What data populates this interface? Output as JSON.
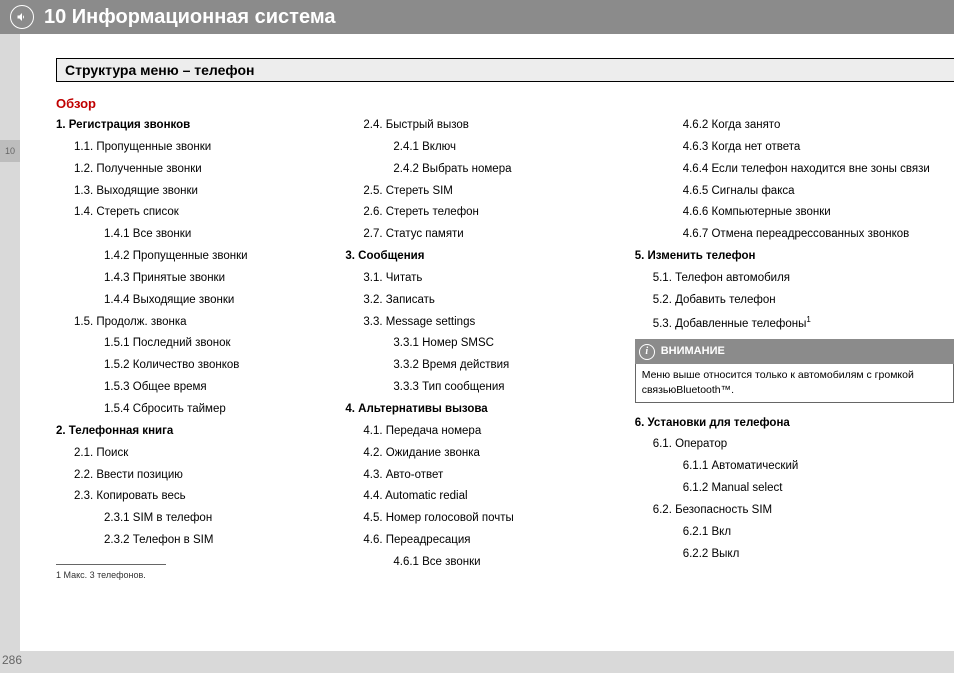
{
  "header": {
    "title": "10 Информационная система"
  },
  "section_title": "Структура меню – телефон",
  "overview": "Обзор",
  "side_tab": "10",
  "page_number": "286",
  "col1": [
    {
      "t": "1. Регистрация звонков",
      "c": "bold"
    },
    {
      "t": "1.1. Пропущенные звонки",
      "c": "l1"
    },
    {
      "t": "1.2. Полученные звонки",
      "c": "l1"
    },
    {
      "t": "1.3. Выходящие звонки",
      "c": "l1"
    },
    {
      "t": "1.4. Стереть список",
      "c": "l1"
    },
    {
      "t": "1.4.1 Все звонки",
      "c": "l2"
    },
    {
      "t": "1.4.2  Пропущенные звонки",
      "c": "l2"
    },
    {
      "t": "1.4.3 Принятые звонки",
      "c": "l2"
    },
    {
      "t": "1.4.4 Выходящие звонки",
      "c": "l2"
    },
    {
      "t": "1.5. Продолж. звонка",
      "c": "l1"
    },
    {
      "t": "1.5.1 Последний звонок",
      "c": "l2"
    },
    {
      "t": "1.5.2 Количество звонков",
      "c": "l2"
    },
    {
      "t": "1.5.3 Общее время",
      "c": "l2"
    },
    {
      "t": "1.5.4 Сбросить таймер",
      "c": "l2"
    },
    {
      "t": "2. Телефонная книга",
      "c": "bold"
    },
    {
      "t": "2.1. Поиск",
      "c": "l1"
    },
    {
      "t": "2.2. Ввести позицию",
      "c": "l1"
    },
    {
      "t": "2.3.  Копировать весь",
      "c": "l1"
    },
    {
      "t": "2.3.1 SIM в телефон",
      "c": "l2"
    },
    {
      "t": "2.3.2  Телефон в SIM",
      "c": "l2"
    }
  ],
  "col2": [
    {
      "t": "2.4. Быстрый вызов",
      "c": "l1"
    },
    {
      "t": "2.4.1  Включ",
      "c": "l2"
    },
    {
      "t": "2.4.2 Выбрать номера",
      "c": "l2"
    },
    {
      "t": "2.5. Стереть SIM",
      "c": "l1"
    },
    {
      "t": "2.6. Стереть телефон",
      "c": "l1"
    },
    {
      "t": "2.7. Статус памяти",
      "c": "l1"
    },
    {
      "t": "3. Сообщения",
      "c": "bold"
    },
    {
      "t": "3.1. Читать",
      "c": "l1"
    },
    {
      "t": "3.2. Записать",
      "c": "l1"
    },
    {
      "t": "3.3. Message settings",
      "c": "l1"
    },
    {
      "t": "3.3.1 Номер SMSC",
      "c": "l2"
    },
    {
      "t": "3.3.2 Время действия",
      "c": "l2"
    },
    {
      "t": "3.3.3  Тип сообщения",
      "c": "l2"
    },
    {
      "t": "4.  Альтернативы вызова",
      "c": "bold"
    },
    {
      "t": "4.1. Передача номера",
      "c": "l1"
    },
    {
      "t": "4.2. Ожидание звонка",
      "c": "l1"
    },
    {
      "t": "4.3. Авто-ответ",
      "c": "l1"
    },
    {
      "t": "4.4. Automatic redial",
      "c": "l1"
    },
    {
      "t": "4.5. Номер голосовой почты",
      "c": "l1"
    },
    {
      "t": "4.6. Переадресация",
      "c": "l1"
    },
    {
      "t": "4.6.1  Все звонки",
      "c": "l2"
    }
  ],
  "col3_top": [
    {
      "t": "4.6.2  Когда занято",
      "c": "l2"
    },
    {
      "t": "4.6.3 Когда нет ответа",
      "c": "l2"
    },
    {
      "t": "4.6.4 Если телефон находится вне зоны связи",
      "c": "l2"
    },
    {
      "t": "4.6.5  Сигналы факса",
      "c": "l2"
    },
    {
      "t": "4.6.6  Компьютерные звонки",
      "c": "l2"
    },
    {
      "t": "4.6.7  Отмена переадрессованных звонков",
      "c": "l2"
    },
    {
      "t": "5. Изменить телефон",
      "c": "bold"
    },
    {
      "t": "5.1. Телефон автомобиля",
      "c": "l1"
    },
    {
      "t": "5.2. Добавить телефон",
      "c": "l1"
    }
  ],
  "col3_added": "5.3. Добавленные телефоны",
  "note": {
    "title": "ВНИМАНИЕ",
    "body": "Меню выше относится только к автомобилям с громкой связьюBluetooth™."
  },
  "col3_bottom": [
    {
      "t": "6. Установки для телефона",
      "c": "bold"
    },
    {
      "t": "6.1. Оператор",
      "c": "l1"
    },
    {
      "t": "6.1.1 Автоматический",
      "c": "l2"
    },
    {
      "t": "6.1.2 Manual select",
      "c": "l2"
    },
    {
      "t": "6.2. Безопасность SIM",
      "c": "l1"
    },
    {
      "t": "6.2.1 Вкл",
      "c": "l2"
    },
    {
      "t": "6.2.2  Выкл",
      "c": "l2"
    }
  ],
  "footnote": "1  Макс. 3 телефонов."
}
